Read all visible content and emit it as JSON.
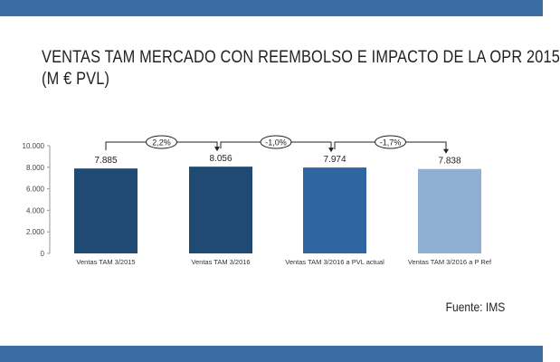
{
  "title": {
    "line1": "VENTAS TAM MERCADO CON REEMBOLSO E IMPACTO DE LA OPR 2015",
    "line2": "(M € PVL)"
  },
  "source": "Fuente: IMS",
  "colors": {
    "frame": "#3a6da3",
    "bars": [
      "#1f4a73",
      "#1f4a73",
      "#2f65a0",
      "#8fb0d2"
    ]
  },
  "chart_data": {
    "type": "bar",
    "categories": [
      "Ventas TAM 3/2015",
      "Ventas TAM 3/2016",
      "Ventas TAM 3/2016 a PVL actual",
      "Ventas TAM 3/2016 a P Ref"
    ],
    "values": [
      7885,
      8056,
      7974,
      7838
    ],
    "value_labels": [
      "7.885",
      "8.056",
      "7.974",
      "7.838"
    ],
    "ylim": [
      0,
      10000
    ],
    "yticks": [
      0,
      2000,
      4000,
      6000,
      8000,
      10000
    ],
    "ytick_labels": [
      "0",
      "2.000",
      "4.000",
      "6.000",
      "8.000",
      "10.000"
    ],
    "changes": [
      {
        "from": 0,
        "to": 1,
        "label": "2,2%"
      },
      {
        "from": 1,
        "to": 2,
        "label": "-1,0%"
      },
      {
        "from": 2,
        "to": 3,
        "label": "-1,7%"
      }
    ],
    "grid": false,
    "legend": "none"
  }
}
